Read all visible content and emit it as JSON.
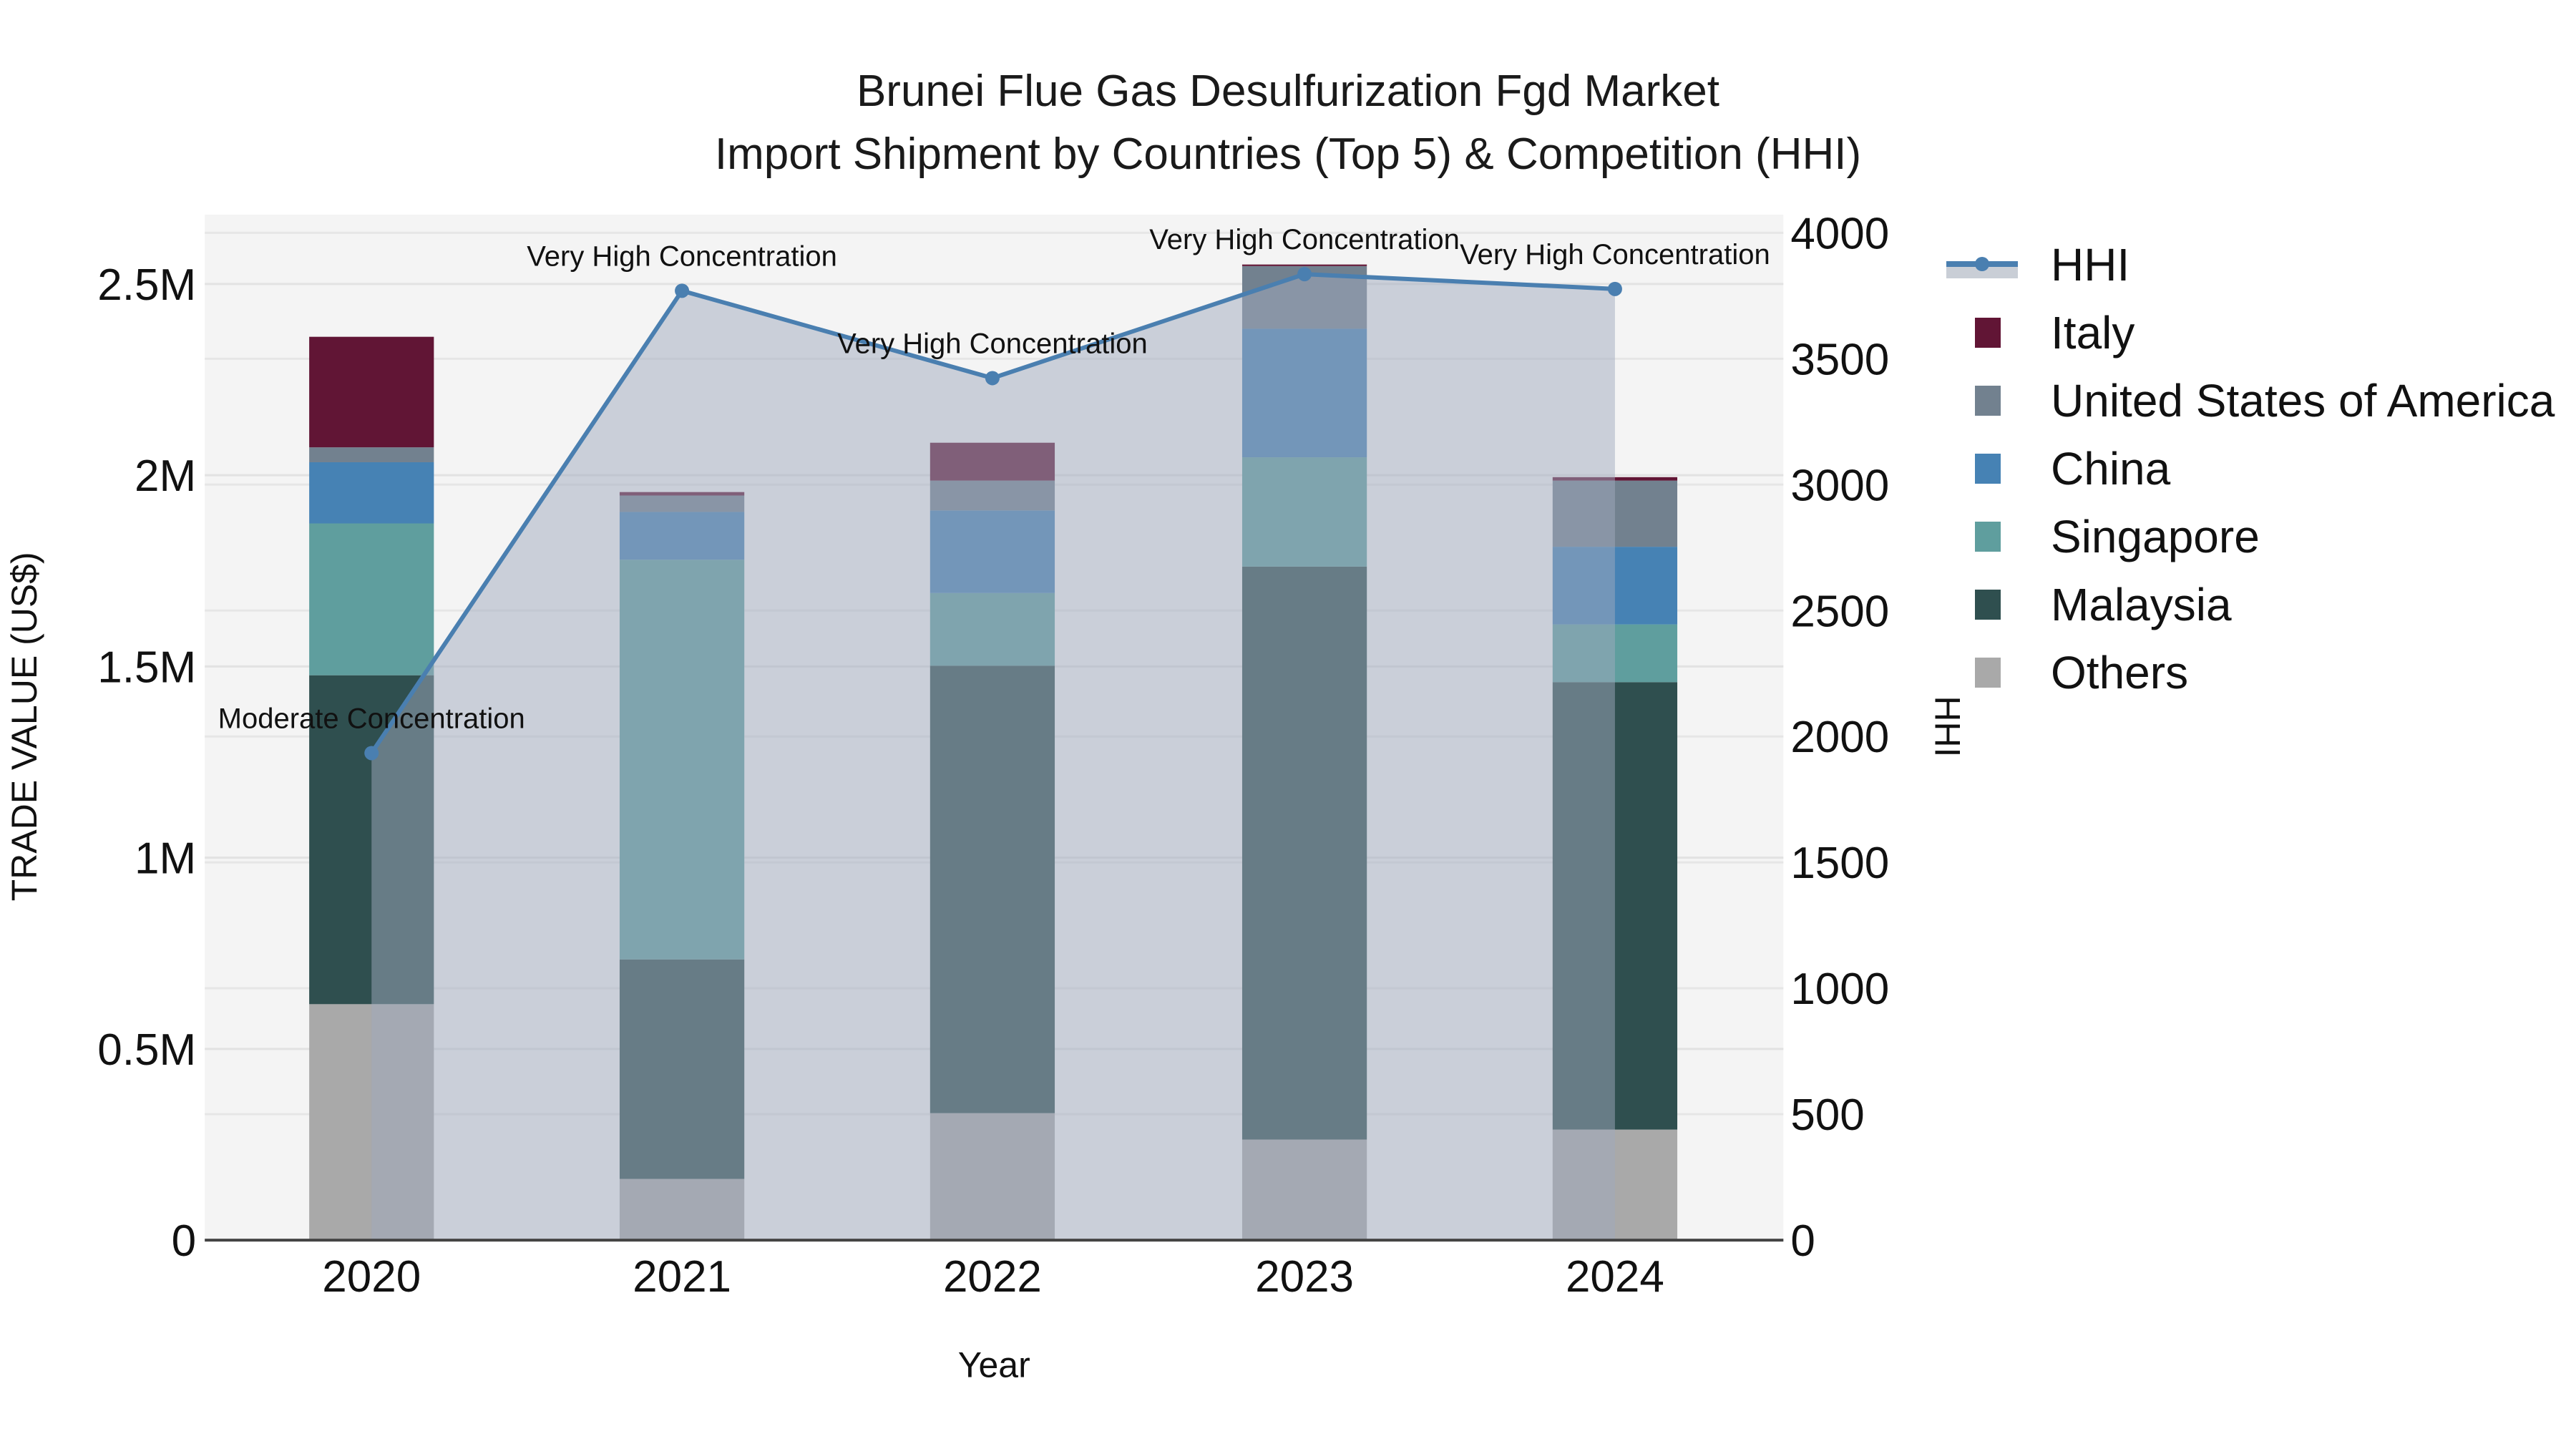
{
  "title": {
    "line1": "Brunei Flue Gas Desulfurization Fgd Market",
    "line2": "Import Shipment by Countries (Top 5) & Competition (HHI)"
  },
  "legend": [
    {
      "label": "HHI",
      "type": "line",
      "color": "#4a7fb0"
    },
    {
      "label": "Italy",
      "color": "#611535"
    },
    {
      "label": "United States of America",
      "color": "#72818f"
    },
    {
      "label": "China",
      "color": "#4682b4"
    },
    {
      "label": "Singapore",
      "color": "#5f9e9e"
    },
    {
      "label": "Malaysia",
      "color": "#2f4f4f"
    },
    {
      "label": "Others",
      "color": "#a9a9a9"
    }
  ],
  "chart_data": {
    "type": "bar",
    "title": "Brunei Flue Gas Desulfurization Fgd Market Import Shipment by Countries (Top 5) & Competition (HHI)",
    "xlabel": "Year",
    "ylabel": "TRADE VALUE (US$)",
    "y2label": "HHI",
    "categories": [
      "2020",
      "2021",
      "2022",
      "2023",
      "2024"
    ],
    "stacked": true,
    "ylim": [
      0,
      2670000
    ],
    "y2lim": [
      0,
      4060
    ],
    "yticks": [
      "0",
      "0.5M",
      "1M",
      "1.5M",
      "2M",
      "2.5M"
    ],
    "y2ticks": [
      "0",
      "500",
      "1000",
      "1500",
      "2000",
      "2500",
      "3000",
      "3500",
      "4000"
    ],
    "series": [
      {
        "name": "Others",
        "color": "#a9a9a9",
        "values": [
          617000,
          160000,
          332000,
          263000,
          289000
        ]
      },
      {
        "name": "Malaysia",
        "color": "#2f4f4f",
        "values": [
          860000,
          574000,
          1170000,
          1498000,
          1170000
        ]
      },
      {
        "name": "Singapore",
        "color": "#5f9e9e",
        "values": [
          397000,
          1045000,
          190000,
          286000,
          151000
        ]
      },
      {
        "name": "China",
        "color": "#4682b4",
        "values": [
          160000,
          125000,
          216000,
          336000,
          203000
        ]
      },
      {
        "name": "United States of America",
        "color": "#72818f",
        "values": [
          39000,
          43000,
          78000,
          164000,
          173000
        ]
      },
      {
        "name": "Italy",
        "color": "#611535",
        "values": [
          289000,
          9000,
          99000,
          4000,
          9000
        ]
      }
    ],
    "line_series": {
      "name": "HHI",
      "axis": "y2",
      "color": "#4a7fb0",
      "fill": "tozeroy",
      "values": [
        1934,
        3770,
        3423,
        3836,
        3777
      ],
      "annotations": [
        "Moderate Concentration",
        "Very High Concentration",
        "Very High Concentration",
        "Very High Concentration",
        "Very High Concentration"
      ]
    },
    "grid": true,
    "legend_position": "right"
  }
}
